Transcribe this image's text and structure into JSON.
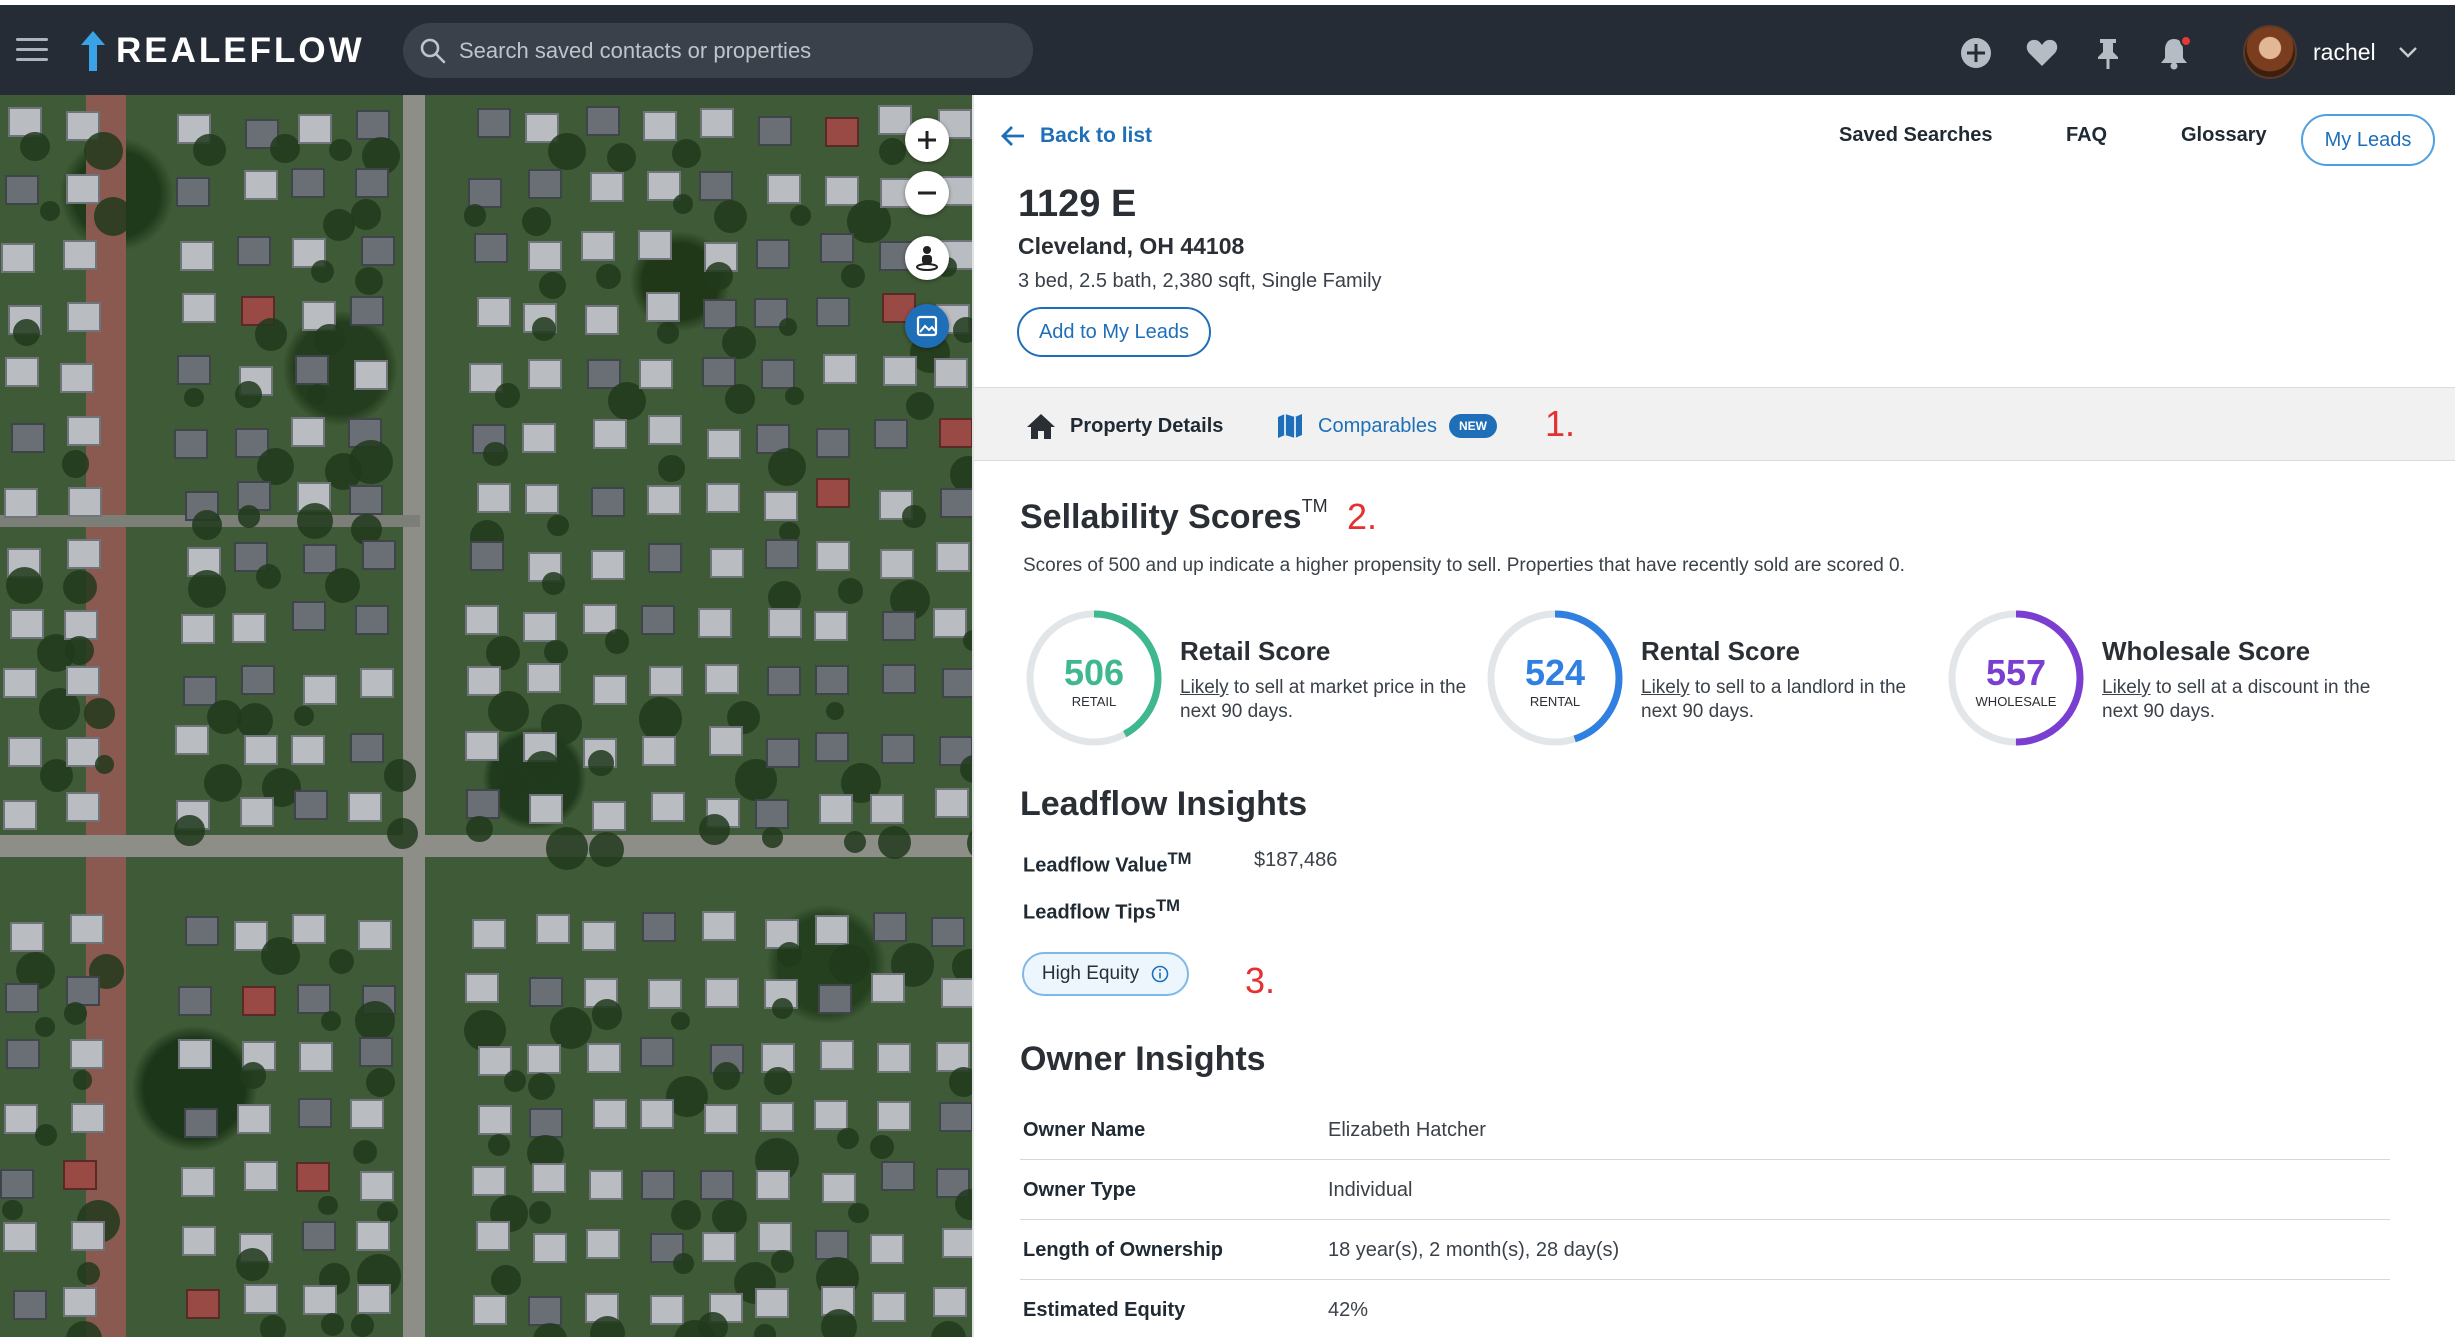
{
  "header": {
    "logo_text": "REALEFLOW",
    "search_placeholder": "Search saved contacts or properties",
    "icons": [
      "plus-circle-icon",
      "heart-icon",
      "pin-icon",
      "bell-icon"
    ],
    "username": "rachel"
  },
  "map": {
    "controls": [
      "zoom-in-icon",
      "zoom-out-icon",
      "street-view-icon",
      "satellite-toggle-icon"
    ]
  },
  "panel": {
    "back_label": "Back to list",
    "nav": [
      "Saved Searches",
      "FAQ",
      "Glossary"
    ],
    "my_leads_label": "My Leads",
    "address_line1": "1129 E",
    "address_line2": "Cleveland, OH 44108",
    "property_summary": "3 bed, 2.5 bath, 2,380 sqft, Single Family",
    "add_button": "Add to My Leads",
    "tabs": {
      "details": "Property Details",
      "comparables": "Comparables",
      "new_badge": "NEW"
    },
    "annotations": [
      "1.",
      "2.",
      "3."
    ],
    "sellability": {
      "title": "Sellability Scores",
      "tm": "TM",
      "description": "Scores of 500 and up indicate a higher propensity to sell. Properties that have recently sold are scored 0.",
      "scores": [
        {
          "value": "506",
          "label": "RETAIL",
          "title": "Retail Score",
          "likely": "Likely",
          "desc": " to sell at market price in the next 90 days.",
          "color": "#3fb78f",
          "fill": 0.42
        },
        {
          "value": "524",
          "label": "RENTAL",
          "title": "Rental Score",
          "likely": "Likely",
          "desc": " to sell to a landlord in the next 90 days.",
          "color": "#2f80e0",
          "fill": 0.45
        },
        {
          "value": "557",
          "label": "WHOLESALE",
          "title": "Wholesale Score",
          "likely": "Likely",
          "desc": " to sell at a discount in the next 90 days.",
          "color": "#7a3fd0",
          "fill": 0.5
        }
      ]
    },
    "leadflow": {
      "title": "Leadflow Insights",
      "value_key": "Leadflow Value",
      "value": "$187,486",
      "tips_key": "Leadflow Tips",
      "tm": "TM",
      "chip": "High Equity"
    },
    "owner": {
      "title": "Owner Insights",
      "rows": [
        {
          "key": "Owner Name",
          "value": "Elizabeth Hatcher"
        },
        {
          "key": "Owner Type",
          "value": "Individual"
        },
        {
          "key": "Length of Ownership",
          "value": "18 year(s), 2 month(s), 28 day(s)"
        },
        {
          "key": "Estimated Equity",
          "value": "42%"
        }
      ]
    }
  }
}
